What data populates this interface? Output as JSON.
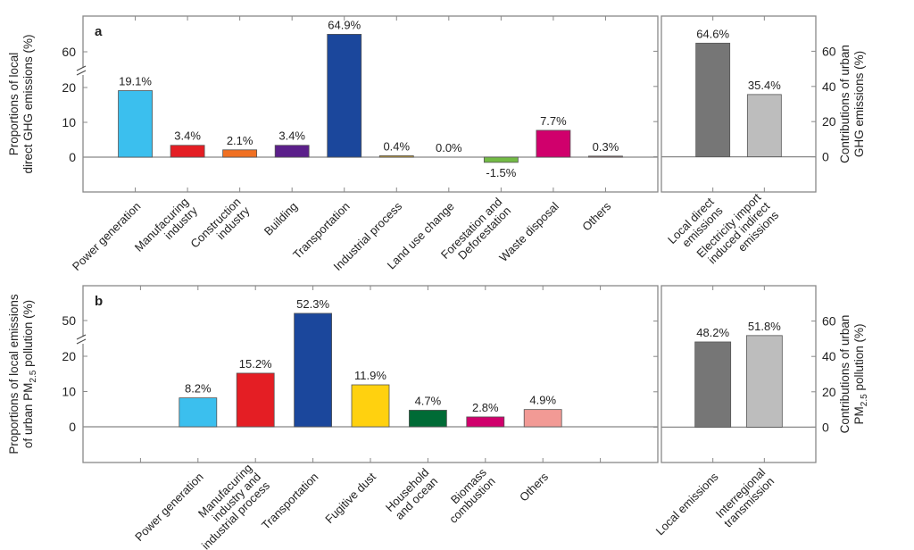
{
  "chart_data": [
    {
      "panel": "a",
      "type": "bar",
      "ylabel_lines": [
        "Proportions of local",
        "direct GHG emissions (%)"
      ],
      "axis_break": true,
      "ylim_lower": [
        -10,
        24
      ],
      "ylim_upper": [
        57,
        70
      ],
      "yticks": [
        0,
        10,
        20,
        60
      ],
      "categories": [
        [
          "Power generation"
        ],
        [
          "Manufacuring",
          "industry"
        ],
        [
          "Construction",
          "industry"
        ],
        [
          "Building"
        ],
        [
          "Transportation"
        ],
        [
          "Industrial process"
        ],
        [
          "Land use change"
        ],
        [
          "Forestation and",
          "Deforestation"
        ],
        [
          "Waste disposal"
        ],
        [
          "Others"
        ]
      ],
      "values": [
        19.1,
        3.4,
        2.1,
        3.4,
        64.9,
        0.4,
        0.0,
        -1.5,
        7.7,
        0.3
      ],
      "data_labels": [
        "19.1%",
        "3.4%",
        "2.1%",
        "3.4%",
        "64.9%",
        "0.4%",
        "0.0%",
        "-1.5%",
        "7.7%",
        "0.3%"
      ],
      "colors": [
        "#3bbfee",
        "#e41e24",
        "#f07022",
        "#5b1f8a",
        "#1b479c",
        "#c9a23a",
        "#888888",
        "#73bb45",
        "#d0006c",
        "#8a6a6a"
      ]
    },
    {
      "panel": "a-right",
      "type": "bar",
      "ylabel_lines": [
        "Contributions of urban",
        "GHG emissions (%)"
      ],
      "ylim": [
        -20,
        80
      ],
      "yticks": [
        0,
        20,
        40,
        60
      ],
      "categories": [
        [
          "Local direct",
          "emissions"
        ],
        [
          "Electricity import",
          "induced indirect",
          "emissions"
        ]
      ],
      "values": [
        64.6,
        35.4
      ],
      "data_labels": [
        "64.6%",
        "35.4%"
      ],
      "colors": [
        "#767676",
        "#bdbdbd"
      ]
    },
    {
      "panel": "b",
      "type": "bar",
      "ylabel_lines": [
        "Proportions of local emissions"
      ],
      "ylabel_pm": {
        "prefix": "of urban PM",
        "sub": "2.5",
        "suffix": " pollution (%)"
      },
      "axis_break": true,
      "ylim_lower": [
        -10,
        24
      ],
      "ylim_upper": [
        48,
        61
      ],
      "yticks": [
        0,
        10,
        20,
        50
      ],
      "categories": [
        [
          "Power generation"
        ],
        [
          "Manufacuring",
          "industry and",
          "industrial process"
        ],
        [
          "Transportation"
        ],
        [
          "Fugitive dust"
        ],
        [
          "Household",
          "and ocean"
        ],
        [
          "Biomass",
          "combustion"
        ],
        [
          "Others"
        ]
      ],
      "values": [
        8.2,
        15.2,
        52.3,
        11.9,
        4.7,
        2.8,
        4.9
      ],
      "data_labels": [
        "8.2%",
        "15.2%",
        "52.3%",
        "11.9%",
        "4.7%",
        "2.8%",
        "4.9%"
      ],
      "colors": [
        "#3bbfee",
        "#e41e24",
        "#1b479c",
        "#ffd10f",
        "#006b36",
        "#d0006c",
        "#f29a95"
      ]
    },
    {
      "panel": "b-right",
      "type": "bar",
      "ylabel_lines": [
        "Contributions of urban"
      ],
      "ylabel_pm": {
        "prefix": "PM",
        "sub": "2.5",
        "suffix": " pollution (%)"
      },
      "ylim": [
        -20,
        80
      ],
      "yticks": [
        0,
        20,
        40,
        60
      ],
      "categories": [
        [
          "Local emissions"
        ],
        [
          "Interregional",
          "transmission"
        ]
      ],
      "values": [
        48.2,
        51.8
      ],
      "data_labels": [
        "48.2%",
        "51.8%"
      ],
      "colors": [
        "#767676",
        "#bdbdbd"
      ]
    }
  ],
  "panel_labels": [
    "a",
    "b"
  ]
}
